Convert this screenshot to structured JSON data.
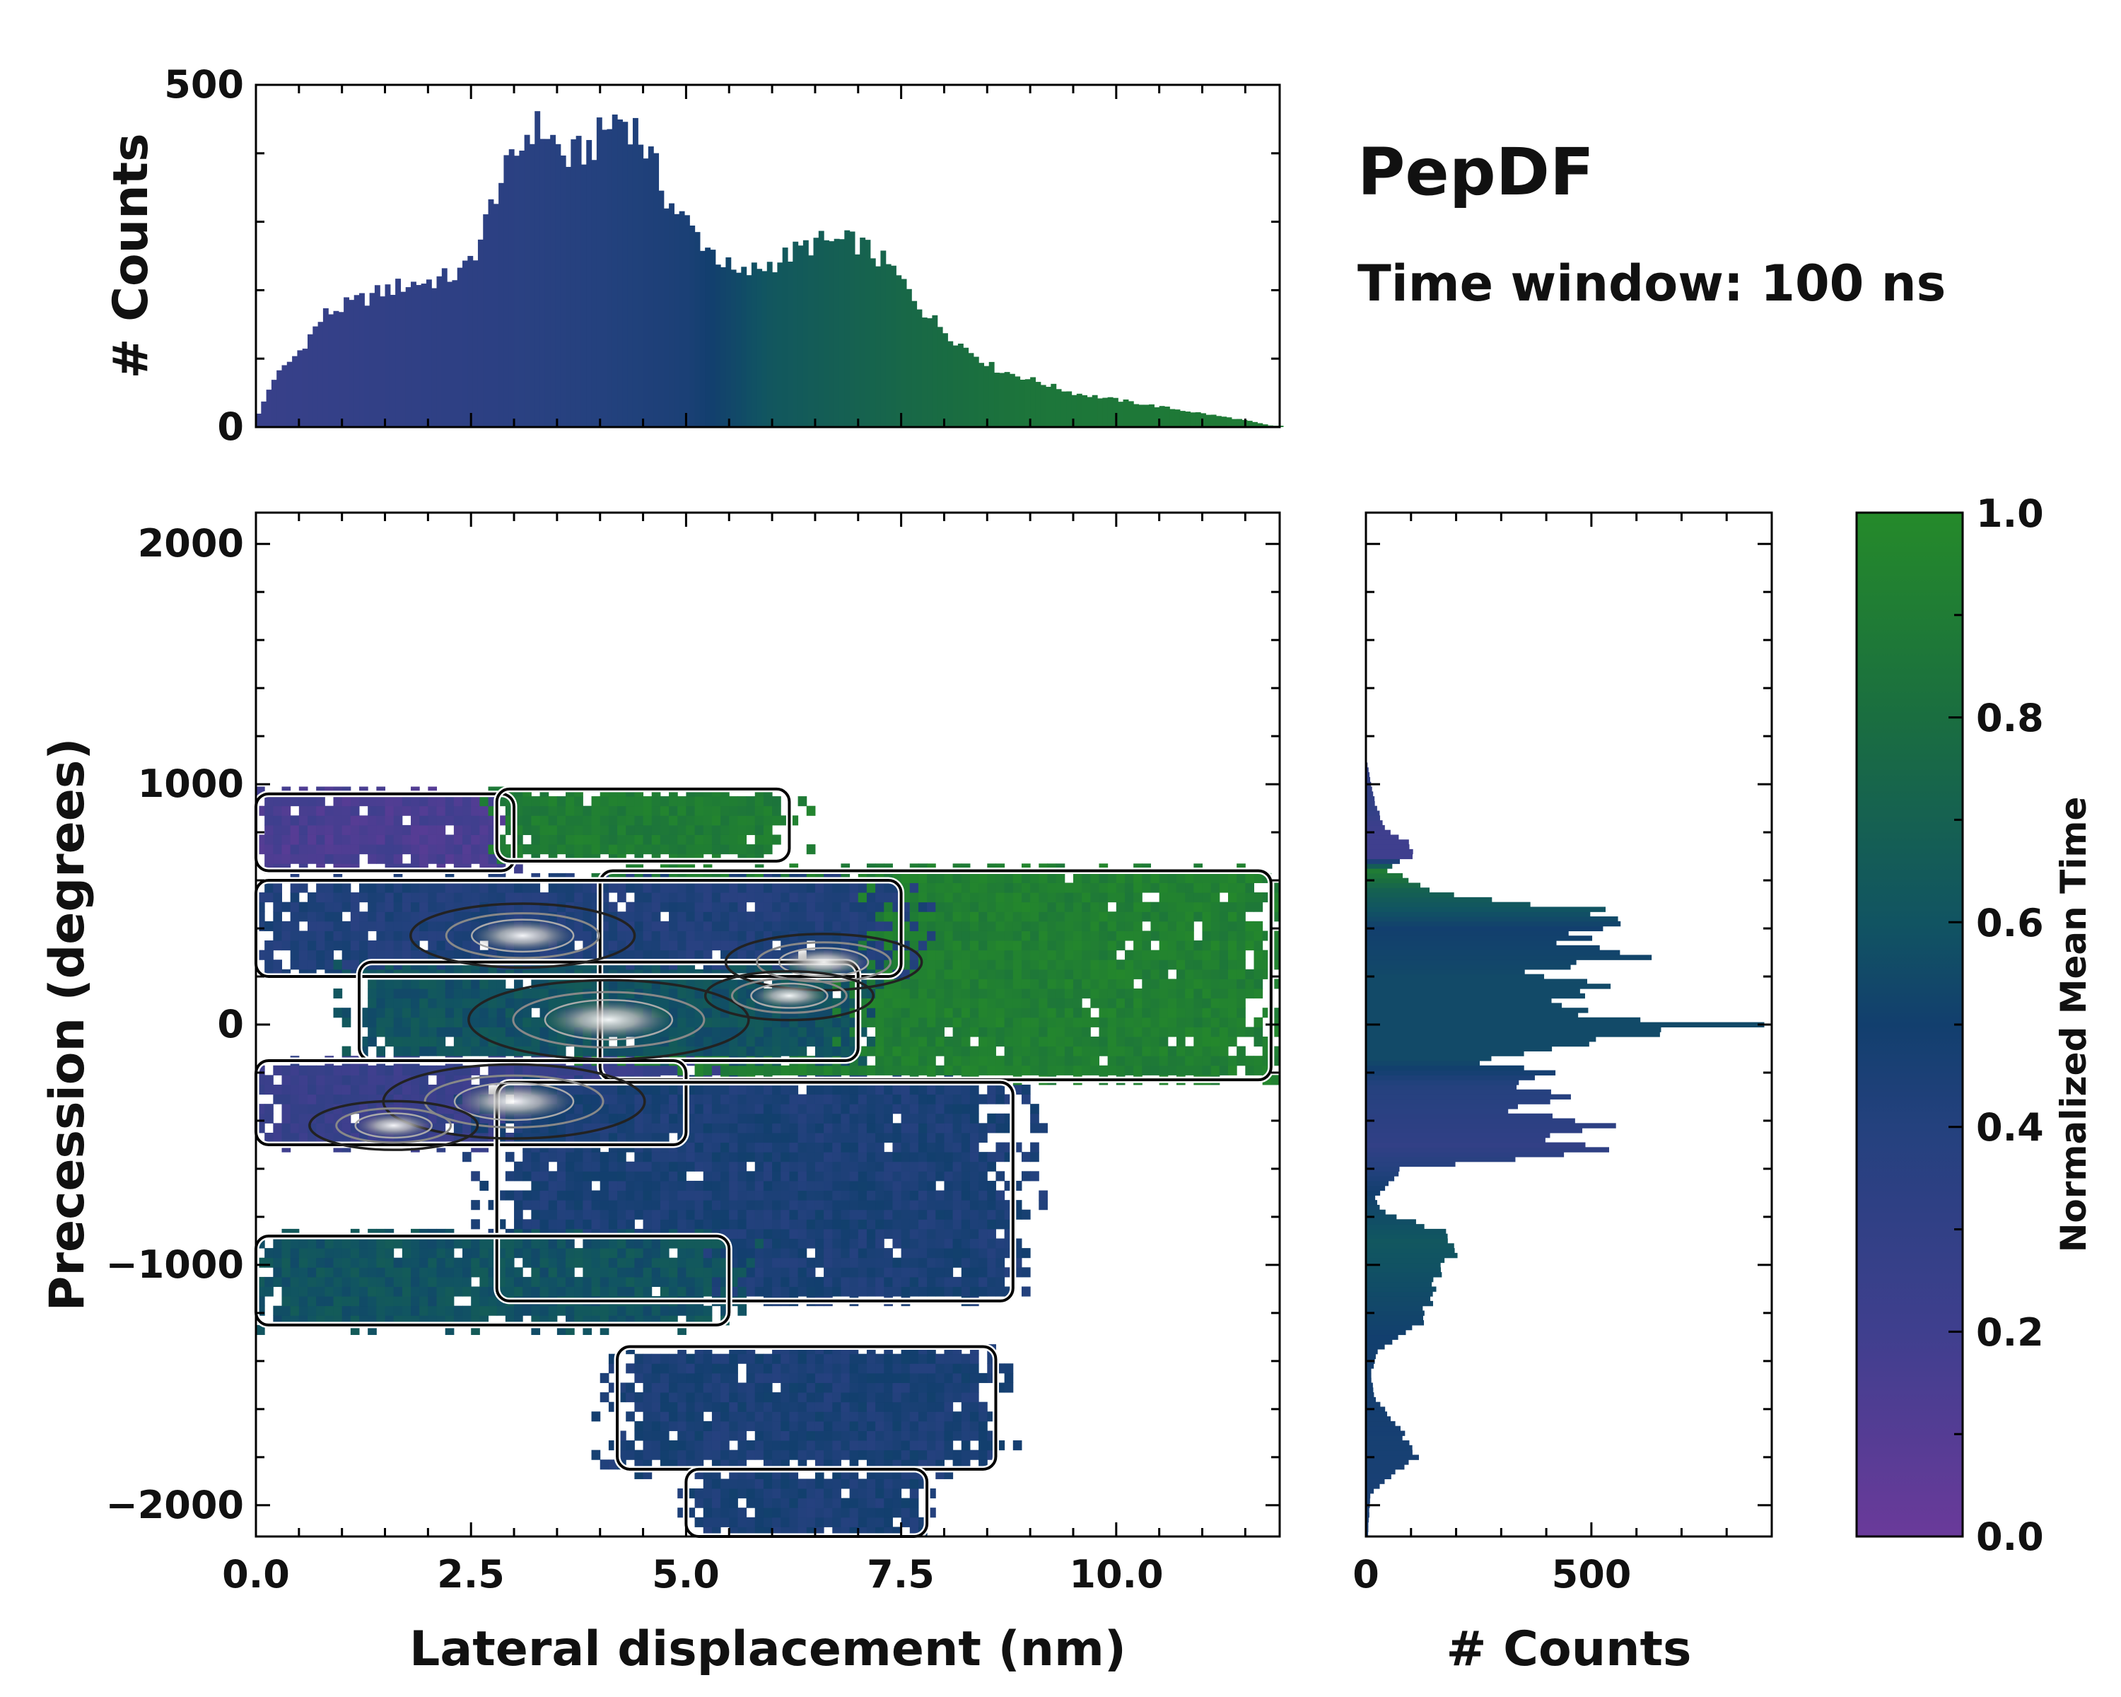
{
  "title": "PepDF",
  "subtitle": "Time window: 100 ns",
  "colors": {
    "low": "#6a3a9a",
    "mid": "#123f6e",
    "high": "#258a2a",
    "contour_outer": "#000000",
    "contour_inner": "#888888"
  },
  "chart_data": [
    {
      "type": "bar",
      "name": "top-marginal-histogram",
      "xlim": [
        0,
        11.9
      ],
      "ylim": [
        0,
        500
      ],
      "ylabel": "# Counts",
      "ytick_labels": [
        "0",
        "500"
      ],
      "bin_width": 0.06,
      "note": "Histogram of lateral displacement; bars colored by normalized mean time",
      "profile_knots": [
        [
          0,
          10
        ],
        [
          0.2,
          70
        ],
        [
          0.5,
          110
        ],
        [
          0.8,
          165
        ],
        [
          1.1,
          180
        ],
        [
          1.5,
          200
        ],
        [
          1.8,
          210
        ],
        [
          2.1,
          215
        ],
        [
          2.4,
          225
        ],
        [
          2.6,
          270
        ],
        [
          2.8,
          350
        ],
        [
          3.0,
          390
        ],
        [
          3.2,
          440
        ],
        [
          3.4,
          430
        ],
        [
          3.6,
          390
        ],
        [
          3.9,
          410
        ],
        [
          4.2,
          455
        ],
        [
          4.4,
          440
        ],
        [
          4.6,
          390
        ],
        [
          4.8,
          330
        ],
        [
          5.0,
          300
        ],
        [
          5.2,
          270
        ],
        [
          5.6,
          220
        ],
        [
          6.0,
          240
        ],
        [
          6.5,
          270
        ],
        [
          7.0,
          270
        ],
        [
          7.4,
          230
        ],
        [
          7.8,
          165
        ],
        [
          8.2,
          120
        ],
        [
          8.6,
          85
        ],
        [
          9.0,
          70
        ],
        [
          9.5,
          50
        ],
        [
          10.0,
          40
        ],
        [
          10.5,
          30
        ],
        [
          11.0,
          20
        ],
        [
          11.5,
          10
        ],
        [
          11.8,
          2
        ]
      ],
      "color_knots": [
        [
          0,
          0.25
        ],
        [
          3,
          0.35
        ],
        [
          5,
          0.45
        ],
        [
          6,
          0.62
        ],
        [
          7.5,
          0.75
        ],
        [
          9,
          0.85
        ],
        [
          11.9,
          0.9
        ]
      ]
    },
    {
      "type": "heatmap",
      "name": "main-2d-density",
      "xlabel": "Lateral displacement (nm)",
      "ylabel": "Precession (degrees)",
      "xlim": [
        0,
        11.9
      ],
      "ylim": [
        -2130,
        2130
      ],
      "xtick_labels": [
        "0.0",
        "2.5",
        "5.0",
        "7.5",
        "10.0"
      ],
      "ytick_labels": [
        "−2000",
        "−1000",
        "0",
        "1000",
        "2000"
      ],
      "cell_width_nm": 0.1,
      "cell_height_deg": 40,
      "regions": [
        {
          "band": "purple-top",
          "x": [
            0.0,
            3.0
          ],
          "y": [
            640,
            960
          ],
          "color_value": 0.15
        },
        {
          "band": "green-top",
          "x": [
            2.8,
            6.2
          ],
          "y": [
            680,
            980
          ],
          "color_value": 0.9
        },
        {
          "band": "green-right",
          "x": [
            4.0,
            11.8
          ],
          "y": [
            -230,
            640
          ],
          "color_value": 0.92
        },
        {
          "band": "blue-mid-upper",
          "x": [
            0.0,
            7.5
          ],
          "y": [
            200,
            600
          ],
          "color_value": 0.42
        },
        {
          "band": "teal-center",
          "x": [
            1.2,
            7.0
          ],
          "y": [
            -150,
            260
          ],
          "color_value": 0.6
        },
        {
          "band": "purple-center-left",
          "x": [
            0.0,
            5.0
          ],
          "y": [
            -500,
            -150
          ],
          "color_value": 0.25
        },
        {
          "band": "blue-lower",
          "x": [
            2.8,
            8.8
          ],
          "y": [
            -1150,
            -240
          ],
          "color_value": 0.45
        },
        {
          "band": "teal-lower-left",
          "x": [
            0.0,
            5.5
          ],
          "y": [
            -1250,
            -880
          ],
          "color_value": 0.6
        },
        {
          "band": "blue-bottom",
          "x": [
            4.2,
            8.6
          ],
          "y": [
            -1850,
            -1340
          ],
          "color_value": 0.45
        },
        {
          "band": "blue-tail",
          "x": [
            5.0,
            7.8
          ],
          "y": [
            -2130,
            -1850
          ],
          "color_value": 0.45
        }
      ],
      "peaks": [
        {
          "x": 4.1,
          "y": 20,
          "level": 1.0
        },
        {
          "x": 3.0,
          "y": -320,
          "level": 0.9
        },
        {
          "x": 3.1,
          "y": 370,
          "level": 0.7
        },
        {
          "x": 6.6,
          "y": 260,
          "level": 0.55
        },
        {
          "x": 6.2,
          "y": 120,
          "level": 0.4
        },
        {
          "x": 1.6,
          "y": -420,
          "level": 0.4
        }
      ]
    },
    {
      "type": "bar",
      "orientation": "horizontal",
      "name": "right-marginal-histogram",
      "xlabel": "# Counts",
      "xlim": [
        0,
        900
      ],
      "xtick_labels": [
        "0",
        "500"
      ],
      "ylim": [
        -2130,
        2130
      ],
      "bin_height": 20,
      "profile_knots": [
        [
          -2100,
          5
        ],
        [
          -1950,
          10
        ],
        [
          -1870,
          60
        ],
        [
          -1800,
          110
        ],
        [
          -1700,
          80
        ],
        [
          -1600,
          40
        ],
        [
          -1550,
          20
        ],
        [
          -1450,
          10
        ],
        [
          -1350,
          30
        ],
        [
          -1250,
          120
        ],
        [
          -1150,
          140
        ],
        [
          -1050,
          160
        ],
        [
          -950,
          190
        ],
        [
          -860,
          170
        ],
        [
          -780,
          40
        ],
        [
          -720,
          20
        ],
        [
          -600,
          80
        ],
        [
          -520,
          540
        ],
        [
          -460,
          380
        ],
        [
          -420,
          540
        ],
        [
          -360,
          300
        ],
        [
          -300,
          480
        ],
        [
          -250,
          300
        ],
        [
          -200,
          460
        ],
        [
          -150,
          220
        ],
        [
          -100,
          400
        ],
        [
          -40,
          600
        ],
        [
          0,
          820
        ],
        [
          40,
          500
        ],
        [
          100,
          420
        ],
        [
          170,
          560
        ],
        [
          220,
          350
        ],
        [
          290,
          620
        ],
        [
          340,
          450
        ],
        [
          390,
          500
        ],
        [
          440,
          560
        ],
        [
          480,
          500
        ],
        [
          540,
          180
        ],
        [
          600,
          100
        ],
        [
          650,
          40
        ],
        [
          700,
          110
        ],
        [
          760,
          90
        ],
        [
          820,
          40
        ],
        [
          900,
          25
        ],
        [
          960,
          15
        ],
        [
          1100,
          2
        ]
      ],
      "color_knots": [
        [
          -2130,
          0.45
        ],
        [
          -1300,
          0.5
        ],
        [
          -900,
          0.62
        ],
        [
          -700,
          0.5
        ],
        [
          -500,
          0.3
        ],
        [
          -250,
          0.4
        ],
        [
          -150,
          0.55
        ],
        [
          200,
          0.55
        ],
        [
          400,
          0.5
        ],
        [
          560,
          0.7
        ],
        [
          640,
          0.9
        ],
        [
          700,
          0.2
        ],
        [
          800,
          0.2
        ],
        [
          900,
          0.3
        ]
      ]
    },
    {
      "type": "colorbar",
      "name": "colorbar",
      "label": "Normalized Mean Time",
      "range": [
        0.0,
        1.0
      ],
      "tick_labels": [
        "0.0",
        "0.2",
        "0.4",
        "0.6",
        "0.8",
        "1.0"
      ]
    }
  ]
}
